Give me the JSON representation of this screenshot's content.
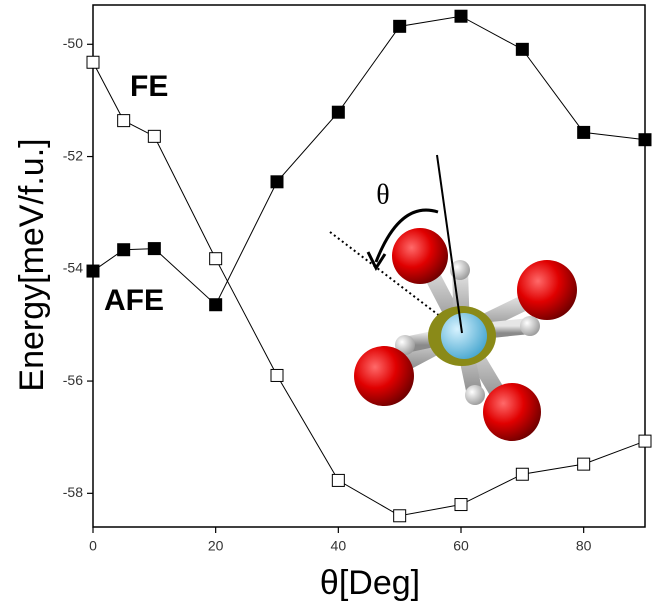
{
  "chart_data": {
    "type": "line",
    "x_label": "θ[Deg]",
    "y_label": "Energy[meV/f.u.]",
    "annotation": "θ",
    "xlim": [
      0,
      90
    ],
    "xticks": [
      0,
      20,
      40,
      60,
      80
    ],
    "ylim": [
      -58.6,
      -49.3
    ],
    "yticks": [
      -50,
      -52,
      -54,
      -56,
      -58
    ],
    "x": [
      0,
      5,
      10,
      20,
      30,
      40,
      50,
      60,
      70,
      80,
      90
    ],
    "series": [
      {
        "name": "FE",
        "color": "#000000",
        "marker": "open-square",
        "values": [
          -50.32,
          -51.36,
          -51.64,
          -53.82,
          -55.9,
          -57.77,
          -58.4,
          -58.2,
          -57.66,
          -57.48,
          -57.07
        ]
      },
      {
        "name": "AFE",
        "color": "#000000",
        "marker": "filled-square",
        "values": [
          -54.04,
          -53.66,
          -53.64,
          -54.64,
          -52.45,
          -51.21,
          -49.68,
          -49.5,
          -50.09,
          -51.57,
          -51.7
        ]
      }
    ]
  }
}
